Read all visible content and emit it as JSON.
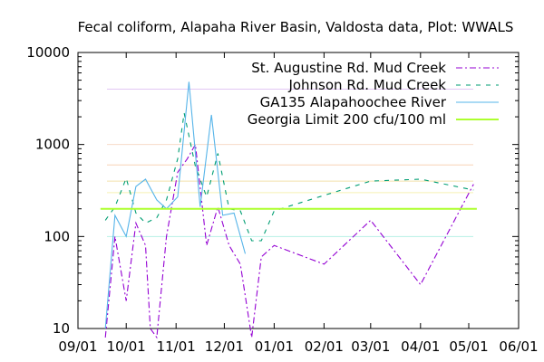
{
  "chart_data": {
    "type": "line",
    "title": "Fecal coliform, Alapaha River Basin, Valdosta data, Plot: WWALS",
    "xlabel": "",
    "ylabel": "",
    "y_scale": "log",
    "ylim": [
      10,
      10000
    ],
    "xlim": [
      "2023-09-01",
      "2024-06-01"
    ],
    "x_ticks": [
      "09/01",
      "10/01",
      "11/01",
      "12/01",
      "01/01",
      "02/01",
      "03/01",
      "04/01",
      "05/01",
      "06/01"
    ],
    "y_ticks": [
      "10",
      "100",
      "1000",
      "10000"
    ],
    "legend_position": "top-right",
    "grid": "colored horizontal reference lines",
    "reference_lines": [
      {
        "value": 4000,
        "color": "#e2c6f4"
      },
      {
        "value": 1000,
        "color": "#f7dcc8"
      },
      {
        "value": 600,
        "color": "#f8d2b5"
      },
      {
        "value": 400,
        "color": "#f3e0ab"
      },
      {
        "value": 300,
        "color": "#f6f0b3"
      },
      {
        "value": 100,
        "color": "#b7f0e6"
      }
    ],
    "series": [
      {
        "name": "St. Augustine Rd. Mud Creek",
        "color": "#9400d3",
        "dash": "7,3,2,3",
        "points": [
          [
            "2023-09-18",
            8
          ],
          [
            "2023-09-24",
            100
          ],
          [
            "2023-10-01",
            20
          ],
          [
            "2023-10-07",
            140
          ],
          [
            "2023-10-13",
            80
          ],
          [
            "2023-10-16",
            10
          ],
          [
            "2023-10-20",
            8
          ],
          [
            "2023-10-26",
            100
          ],
          [
            "2023-11-02",
            500
          ],
          [
            "2023-11-08",
            700
          ],
          [
            "2023-11-13",
            1000
          ],
          [
            "2023-11-20",
            80
          ],
          [
            "2023-11-27",
            210
          ],
          [
            "2023-12-04",
            80
          ],
          [
            "2023-12-11",
            50
          ],
          [
            "2023-12-18",
            8
          ],
          [
            "2023-12-24",
            60
          ],
          [
            "2024-01-01",
            80
          ],
          [
            "2024-02-01",
            50
          ],
          [
            "2024-03-01",
            150
          ],
          [
            "2024-04-01",
            30
          ],
          [
            "2024-05-04",
            370
          ]
        ]
      },
      {
        "name": "Johnson Rd. Mud Creek",
        "color": "#009e73",
        "dash": "5,6",
        "points": [
          [
            "2023-09-18",
            150
          ],
          [
            "2023-09-24",
            210
          ],
          [
            "2023-10-01",
            430
          ],
          [
            "2023-10-07",
            180
          ],
          [
            "2023-10-13",
            140
          ],
          [
            "2023-10-20",
            160
          ],
          [
            "2023-10-26",
            250
          ],
          [
            "2023-11-02",
            700
          ],
          [
            "2023-11-06",
            2200
          ],
          [
            "2023-11-13",
            580
          ],
          [
            "2023-11-20",
            270
          ],
          [
            "2023-11-27",
            800
          ],
          [
            "2023-12-04",
            200
          ],
          [
            "2023-12-11",
            190
          ],
          [
            "2023-12-18",
            90
          ],
          [
            "2023-12-24",
            90
          ],
          [
            "2024-01-01",
            190
          ],
          [
            "2024-02-01",
            280
          ],
          [
            "2024-03-01",
            400
          ],
          [
            "2024-04-01",
            420
          ],
          [
            "2024-05-04",
            320
          ]
        ]
      },
      {
        "name": "GA135 Alapahoochee River",
        "color": "#56b4e9",
        "dash": "",
        "points": [
          [
            "2023-09-18",
            10
          ],
          [
            "2023-09-24",
            170
          ],
          [
            "2023-10-01",
            100
          ],
          [
            "2023-10-07",
            350
          ],
          [
            "2023-10-13",
            420
          ],
          [
            "2023-10-20",
            250
          ],
          [
            "2023-10-26",
            200
          ],
          [
            "2023-11-02",
            270
          ],
          [
            "2023-11-09",
            4800
          ],
          [
            "2023-11-16",
            210
          ],
          [
            "2023-11-23",
            2100
          ],
          [
            "2023-11-30",
            170
          ],
          [
            "2023-12-07",
            180
          ],
          [
            "2023-12-14",
            65
          ]
        ]
      },
      {
        "name": "Georgia Limit 200 cfu/100 ml",
        "color": "#adff2f",
        "dash": "",
        "points": [
          [
            "2023-09-15",
            200
          ],
          [
            "2024-05-06",
            200
          ]
        ]
      }
    ]
  }
}
